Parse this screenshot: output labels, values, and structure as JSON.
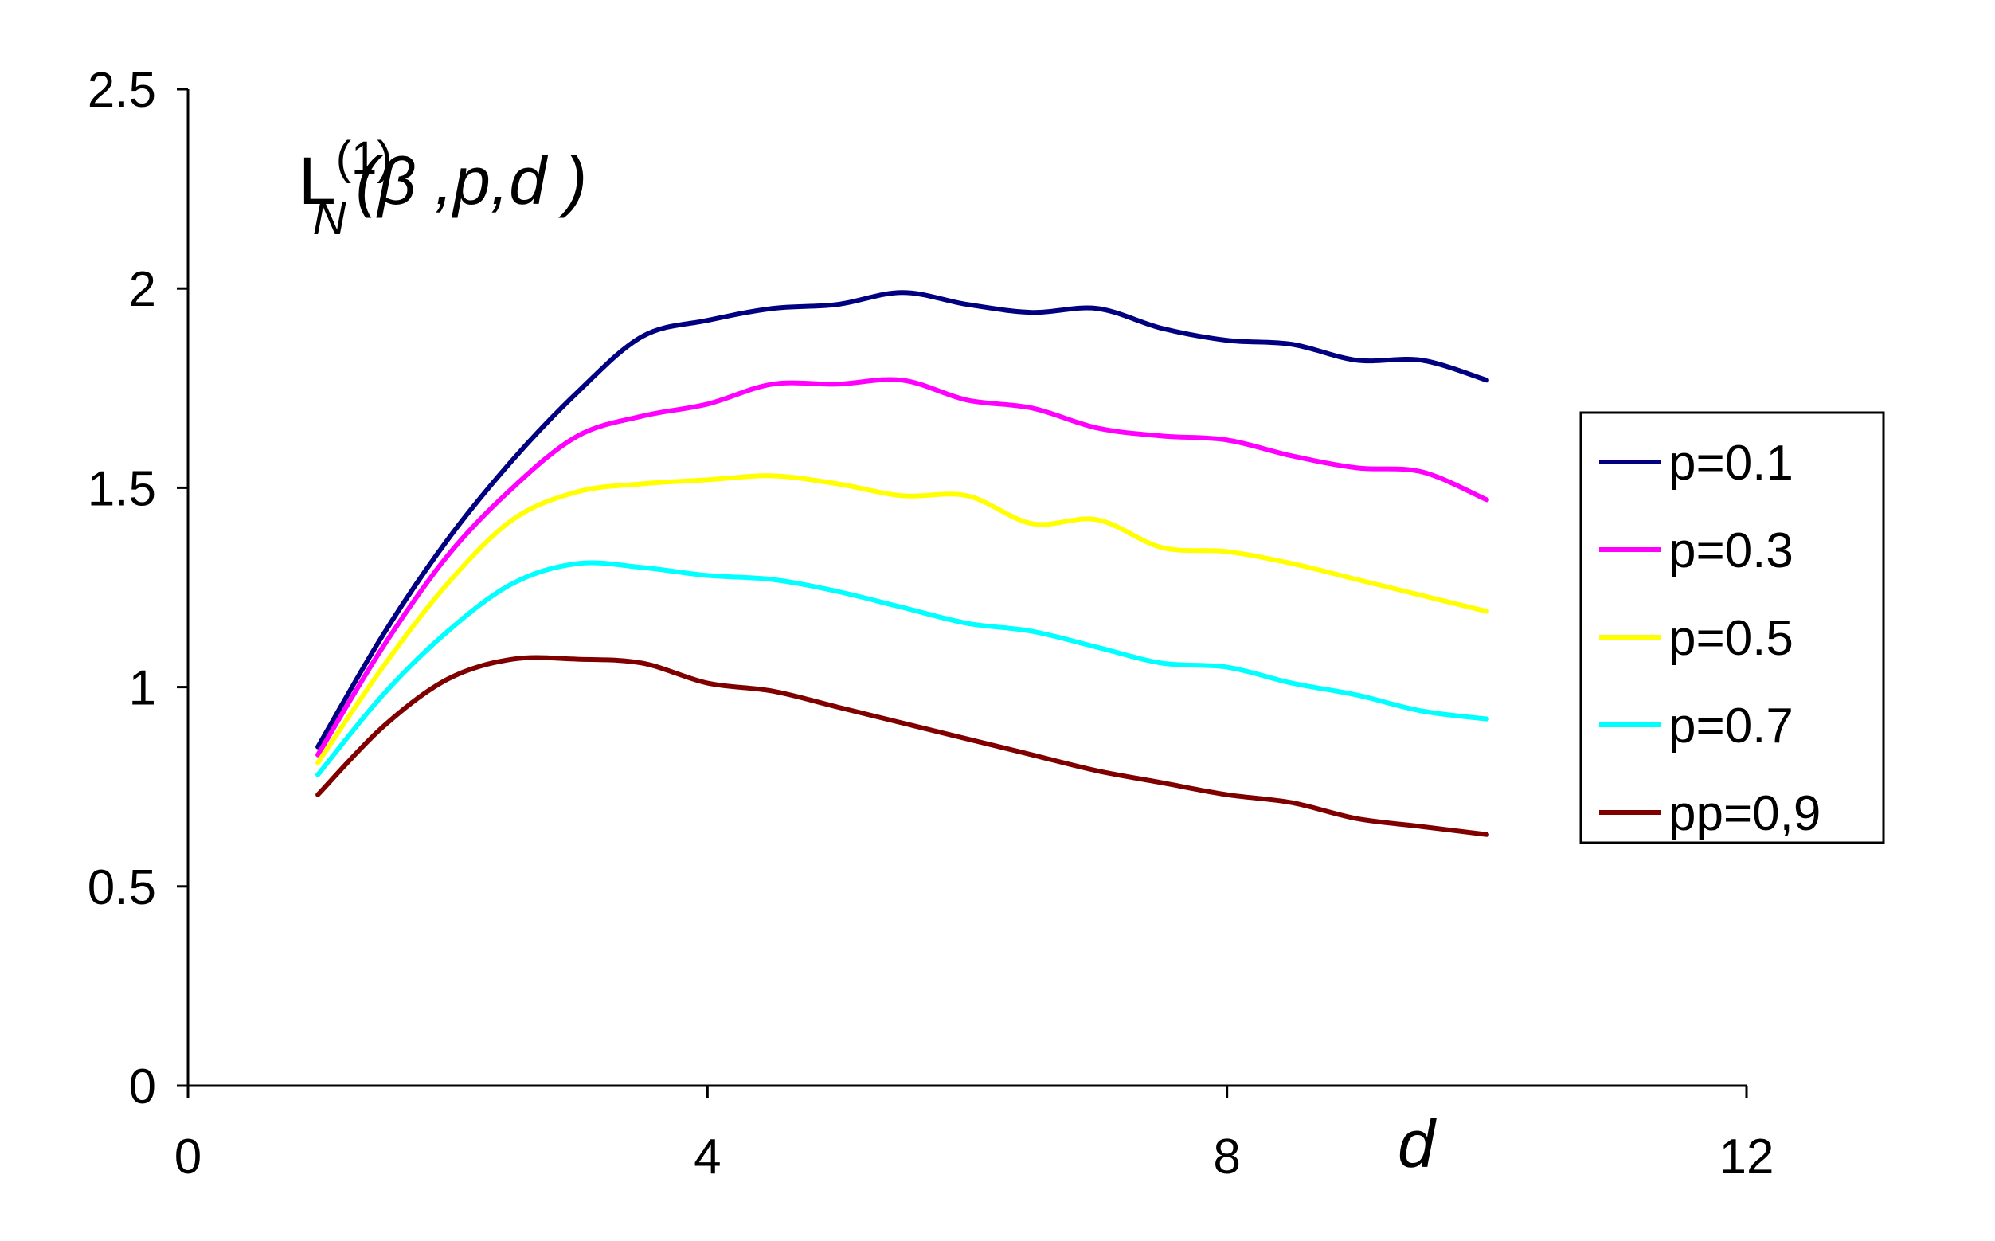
{
  "chart_data": {
    "type": "line",
    "title": "",
    "xlabel": "d",
    "ylabel": "",
    "xlim": [
      0,
      12
    ],
    "ylim": [
      0,
      2.5
    ],
    "x_ticks": [
      "0",
      "4",
      "8",
      "12"
    ],
    "y_ticks": [
      "0",
      "0.5",
      "1",
      "1.5",
      "2",
      "2.5"
    ],
    "annotation": {
      "base": "L",
      "sup": "(1)",
      "sub": "N",
      "args": "(β ,p,d )"
    },
    "grid": false,
    "legend_position": "right",
    "x": [
      1,
      1.5,
      2,
      2.5,
      3,
      3.5,
      4,
      4.5,
      5,
      5.5,
      6,
      6.5,
      7,
      7.5,
      8,
      8.5,
      9,
      9.5,
      10
    ],
    "series": [
      {
        "name": "p=0.1",
        "color": "#000080",
        "values": [
          0.85,
          1.13,
          1.37,
          1.57,
          1.74,
          1.88,
          1.92,
          1.95,
          1.96,
          1.99,
          1.96,
          1.94,
          1.95,
          1.9,
          1.87,
          1.86,
          1.82,
          1.82,
          1.77
        ]
      },
      {
        "name": "p=0.3",
        "color": "#ff00ff",
        "values": [
          0.83,
          1.1,
          1.33,
          1.5,
          1.63,
          1.68,
          1.71,
          1.76,
          1.76,
          1.77,
          1.72,
          1.7,
          1.65,
          1.63,
          1.62,
          1.58,
          1.55,
          1.54,
          1.47
        ]
      },
      {
        "name": "p=0.5",
        "color": "#ffff00",
        "values": [
          0.81,
          1.05,
          1.26,
          1.42,
          1.49,
          1.51,
          1.52,
          1.53,
          1.51,
          1.48,
          1.48,
          1.41,
          1.42,
          1.35,
          1.34,
          1.31,
          1.27,
          1.23,
          1.19
        ]
      },
      {
        "name": "p=0.7",
        "color": "#00ffff",
        "values": [
          0.78,
          0.98,
          1.14,
          1.26,
          1.31,
          1.3,
          1.28,
          1.27,
          1.24,
          1.2,
          1.16,
          1.14,
          1.1,
          1.06,
          1.05,
          1.01,
          0.98,
          0.94,
          0.92
        ]
      },
      {
        "name": "pp=0,9",
        "color": "#800000",
        "values": [
          0.73,
          0.9,
          1.02,
          1.07,
          1.07,
          1.06,
          1.01,
          0.99,
          0.95,
          0.91,
          0.87,
          0.83,
          0.79,
          0.76,
          0.73,
          0.71,
          0.67,
          0.65,
          0.63
        ]
      }
    ]
  }
}
